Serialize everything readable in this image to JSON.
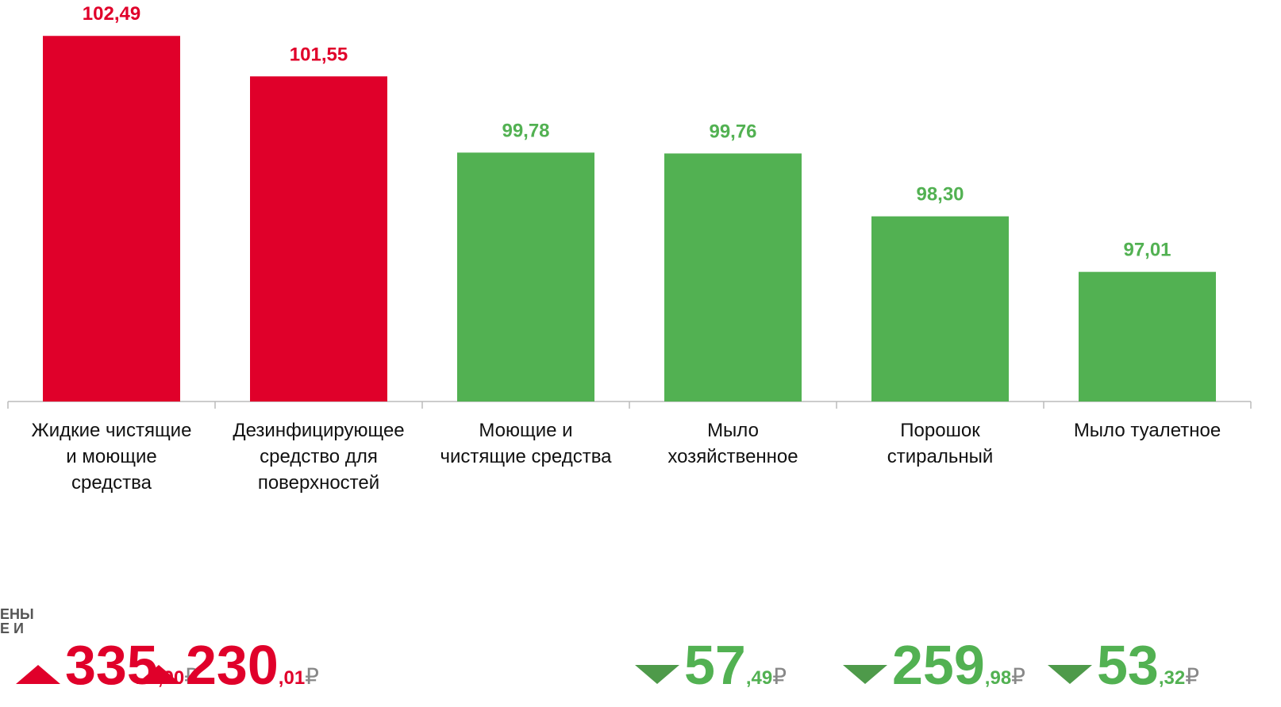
{
  "chart_data": {
    "type": "bar",
    "categories": [
      "Жидкие чистящие\nи моющие\nсредства",
      "Дезинфицирующее\nсредство для\nповерхностей",
      "Моющие и\nчистящие средства",
      "Мыло\nхозяйственное",
      "Порошок\nстиральный",
      "Мыло туалетное"
    ],
    "values": [
      102.49,
      101.55,
      99.78,
      99.76,
      98.3,
      97.01
    ],
    "value_labels": [
      "102,49",
      "101,55",
      "99,78",
      "99,76",
      "98,30",
      "97,01"
    ],
    "colors": [
      "#e0002a",
      "#e0002a",
      "#52b152",
      "#52b152",
      "#52b152",
      "#52b152"
    ],
    "ylim": [
      94,
      103.25
    ],
    "grid": false
  },
  "price_panel": {
    "heading_lines": [
      "ЕНЫ",
      "Е И"
    ],
    "items": [
      {
        "trend": "up",
        "whole": "335",
        "fraction": ",90",
        "currency": "₽"
      },
      {
        "trend": "up",
        "whole": "230",
        "fraction": ",01",
        "currency": "₽"
      },
      {
        "trend": "down",
        "whole": "57",
        "fraction": ",49",
        "currency": "₽"
      },
      {
        "trend": "down",
        "whole": "259",
        "fraction": ",98",
        "currency": "₽"
      },
      {
        "trend": "down",
        "whole": "53",
        "fraction": ",32",
        "currency": "₽"
      }
    ]
  }
}
